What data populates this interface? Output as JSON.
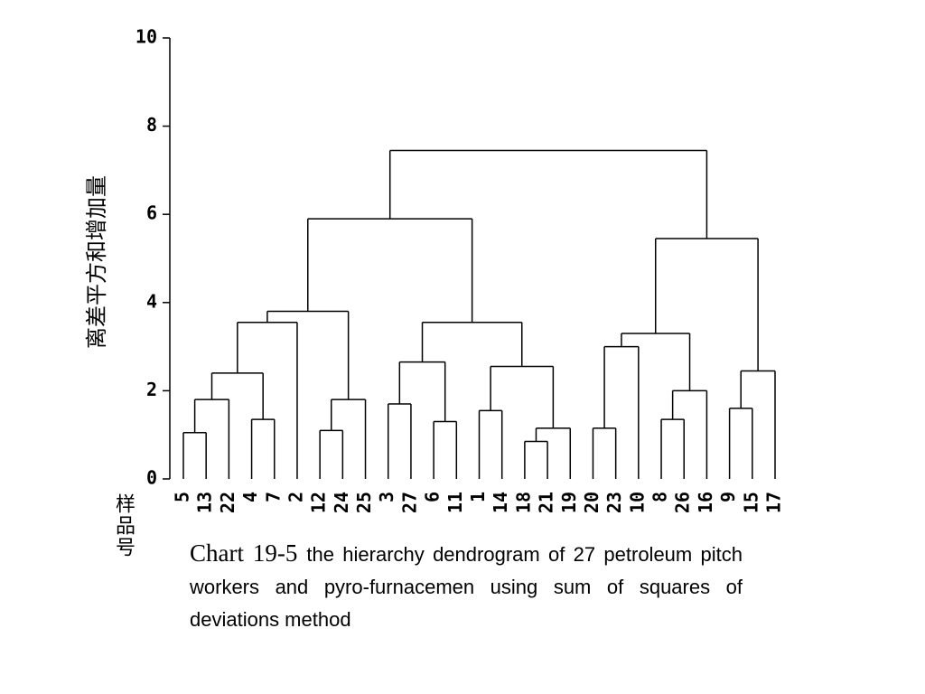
{
  "chart_data": {
    "type": "dendrogram",
    "y_label": "离差平方和增加量",
    "x_label": "样品号",
    "ylim": [
      0,
      10
    ],
    "yticks": [
      0,
      2,
      4,
      6,
      8,
      10
    ],
    "color": "#000000",
    "tree": {
      "height": 7.45,
      "children": [
        {
          "height": 5.9,
          "children": [
            {
              "height": 3.8,
              "children": [
                {
                  "height": 3.55,
                  "children": [
                    {
                      "height": 2.4,
                      "children": [
                        {
                          "height": 1.8,
                          "children": [
                            {
                              "height": 1.05,
                              "children": [
                                "5",
                                "13"
                              ]
                            },
                            "22"
                          ]
                        },
                        {
                          "height": 1.35,
                          "children": [
                            "4",
                            "7"
                          ]
                        }
                      ]
                    },
                    "2"
                  ]
                },
                {
                  "height": 1.8,
                  "children": [
                    {
                      "height": 1.1,
                      "children": [
                        "12",
                        "24"
                      ]
                    },
                    "25"
                  ]
                }
              ]
            },
            {
              "height": 3.55,
              "children": [
                {
                  "height": 2.65,
                  "children": [
                    {
                      "height": 1.7,
                      "children": [
                        "3",
                        "27"
                      ]
                    },
                    {
                      "height": 1.3,
                      "children": [
                        "6",
                        "11"
                      ]
                    }
                  ]
                },
                {
                  "height": 2.55,
                  "children": [
                    {
                      "height": 1.55,
                      "children": [
                        "1",
                        "14"
                      ]
                    },
                    {
                      "height": 1.15,
                      "children": [
                        {
                          "height": 0.85,
                          "children": [
                            "18",
                            "21"
                          ]
                        },
                        "19"
                      ]
                    }
                  ]
                }
              ]
            }
          ]
        },
        {
          "height": 5.45,
          "children": [
            {
              "height": 3.3,
              "children": [
                {
                  "height": 3.0,
                  "children": [
                    {
                      "height": 1.15,
                      "children": [
                        "20",
                        "23"
                      ]
                    },
                    "10"
                  ]
                },
                {
                  "height": 2.0,
                  "children": [
                    {
                      "height": 1.35,
                      "children": [
                        "8",
                        "26"
                      ]
                    },
                    "16"
                  ]
                }
              ]
            },
            {
              "height": 2.45,
              "children": [
                {
                  "height": 1.6,
                  "children": [
                    "9",
                    "15"
                  ]
                },
                "17"
              ]
            }
          ]
        }
      ]
    }
  },
  "caption": {
    "label": "Chart 19-5",
    "text": "the hierarchy dendrogram of 27 petroleum pitch workers and pyro-furnacemen using sum of squares of deviations method"
  }
}
